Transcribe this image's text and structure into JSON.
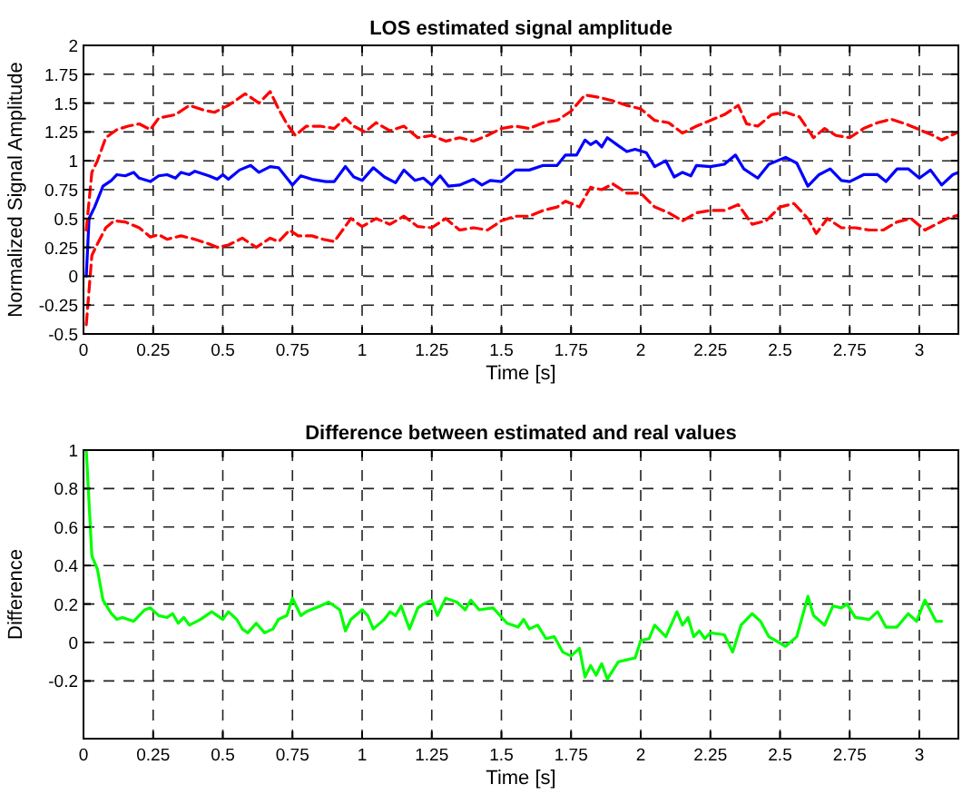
{
  "chart_data": [
    {
      "type": "line",
      "title": "LOS estimated signal amplitude",
      "xlabel": "Time [s]",
      "ylabel": "Normalized Signal Amplitude",
      "xlim": [
        0,
        3.14
      ],
      "ylim": [
        -0.5,
        2
      ],
      "xticks": [
        0,
        0.25,
        0.5,
        0.75,
        1,
        1.25,
        1.5,
        1.75,
        2,
        2.25,
        2.5,
        2.75,
        3
      ],
      "yticks": [
        -0.5,
        -0.25,
        0,
        0.25,
        0.5,
        0.75,
        1,
        1.25,
        1.5,
        1.75,
        2
      ],
      "grid": true,
      "series": [
        {
          "color": "#0000ff",
          "line_style": "solid",
          "x": [
            0.01,
            0.02,
            0.04,
            0.07,
            0.1,
            0.12,
            0.15,
            0.18,
            0.2,
            0.24,
            0.27,
            0.3,
            0.33,
            0.35,
            0.38,
            0.4,
            0.45,
            0.48,
            0.5,
            0.52,
            0.56,
            0.6,
            0.63,
            0.67,
            0.7,
            0.73,
            0.75,
            0.78,
            0.82,
            0.87,
            0.9,
            0.94,
            0.97,
            1.0,
            1.04,
            1.08,
            1.12,
            1.15,
            1.19,
            1.22,
            1.25,
            1.28,
            1.31,
            1.35,
            1.4,
            1.43,
            1.46,
            1.5,
            1.55,
            1.6,
            1.65,
            1.7,
            1.73,
            1.77,
            1.8,
            1.82,
            1.84,
            1.86,
            1.88,
            1.92,
            1.95,
            1.98,
            2.02,
            2.05,
            2.09,
            2.12,
            2.15,
            2.18,
            2.2,
            2.25,
            2.3,
            2.34,
            2.37,
            2.42,
            2.46,
            2.52,
            2.56,
            2.6,
            2.64,
            2.68,
            2.72,
            2.75,
            2.8,
            2.85,
            2.88,
            2.92,
            2.96,
            3.0,
            3.04,
            3.08,
            3.12,
            3.14
          ],
          "values": [
            0,
            0.5,
            0.6,
            0.78,
            0.83,
            0.88,
            0.87,
            0.9,
            0.85,
            0.82,
            0.87,
            0.88,
            0.85,
            0.9,
            0.88,
            0.91,
            0.87,
            0.84,
            0.88,
            0.84,
            0.92,
            0.96,
            0.9,
            0.95,
            0.94,
            0.85,
            0.79,
            0.87,
            0.84,
            0.82,
            0.82,
            0.95,
            0.86,
            0.83,
            0.94,
            0.86,
            0.81,
            0.92,
            0.83,
            0.85,
            0.79,
            0.87,
            0.78,
            0.79,
            0.84,
            0.79,
            0.83,
            0.82,
            0.92,
            0.92,
            0.96,
            0.96,
            1.05,
            1.05,
            1.18,
            1.14,
            1.17,
            1.12,
            1.2,
            1.13,
            1.08,
            1.1,
            1.07,
            0.95,
            1.0,
            0.86,
            0.9,
            0.87,
            0.96,
            0.95,
            0.97,
            1.05,
            0.93,
            0.85,
            0.97,
            1.03,
            0.98,
            0.78,
            0.88,
            0.93,
            0.83,
            0.82,
            0.88,
            0.88,
            0.82,
            0.93,
            0.93,
            0.85,
            0.92,
            0.79,
            0.88,
            0.9
          ]
        },
        {
          "color": "#ff0000",
          "line_style": "dashed",
          "x": [
            0.01,
            0.03,
            0.05,
            0.08,
            0.12,
            0.16,
            0.2,
            0.24,
            0.27,
            0.33,
            0.38,
            0.43,
            0.47,
            0.52,
            0.58,
            0.6,
            0.63,
            0.67,
            0.7,
            0.73,
            0.76,
            0.8,
            0.85,
            0.9,
            0.94,
            0.97,
            1.01,
            1.05,
            1.1,
            1.15,
            1.2,
            1.25,
            1.3,
            1.35,
            1.4,
            1.45,
            1.5,
            1.55,
            1.6,
            1.65,
            1.7,
            1.75,
            1.8,
            1.85,
            1.9,
            1.95,
            2.0,
            2.05,
            2.1,
            2.15,
            2.2,
            2.25,
            2.3,
            2.35,
            2.38,
            2.42,
            2.47,
            2.52,
            2.57,
            2.62,
            2.66,
            2.7,
            2.75,
            2.8,
            2.85,
            2.9,
            2.95,
            3.0,
            3.05,
            3.08,
            3.14
          ],
          "values": [
            0.4,
            0.9,
            1.0,
            1.2,
            1.27,
            1.3,
            1.32,
            1.27,
            1.37,
            1.4,
            1.48,
            1.44,
            1.42,
            1.48,
            1.58,
            1.55,
            1.5,
            1.6,
            1.45,
            1.32,
            1.22,
            1.3,
            1.3,
            1.28,
            1.37,
            1.3,
            1.25,
            1.33,
            1.26,
            1.3,
            1.2,
            1.22,
            1.17,
            1.2,
            1.17,
            1.22,
            1.28,
            1.3,
            1.28,
            1.33,
            1.35,
            1.43,
            1.57,
            1.55,
            1.52,
            1.48,
            1.45,
            1.35,
            1.33,
            1.24,
            1.3,
            1.35,
            1.4,
            1.48,
            1.32,
            1.3,
            1.4,
            1.42,
            1.38,
            1.2,
            1.28,
            1.22,
            1.2,
            1.28,
            1.33,
            1.36,
            1.32,
            1.27,
            1.22,
            1.18,
            1.25
          ]
        },
        {
          "color": "#ff0000",
          "line_style": "dashed",
          "x": [
            0.01,
            0.03,
            0.05,
            0.08,
            0.11,
            0.15,
            0.2,
            0.24,
            0.27,
            0.3,
            0.35,
            0.4,
            0.45,
            0.48,
            0.52,
            0.57,
            0.62,
            0.67,
            0.7,
            0.74,
            0.77,
            0.82,
            0.86,
            0.9,
            0.93,
            0.96,
            1.0,
            1.05,
            1.1,
            1.15,
            1.2,
            1.25,
            1.3,
            1.35,
            1.4,
            1.45,
            1.5,
            1.55,
            1.6,
            1.65,
            1.7,
            1.73,
            1.78,
            1.82,
            1.86,
            1.9,
            1.95,
            2.0,
            2.05,
            2.1,
            2.15,
            2.2,
            2.25,
            2.3,
            2.35,
            2.4,
            2.45,
            2.5,
            2.55,
            2.6,
            2.63,
            2.67,
            2.72,
            2.77,
            2.82,
            2.87,
            2.92,
            2.97,
            3.02,
            3.06,
            3.1,
            3.14
          ],
          "values": [
            -0.42,
            0.18,
            0.28,
            0.42,
            0.48,
            0.47,
            0.42,
            0.34,
            0.36,
            0.32,
            0.35,
            0.32,
            0.28,
            0.25,
            0.27,
            0.33,
            0.25,
            0.33,
            0.3,
            0.4,
            0.35,
            0.35,
            0.32,
            0.3,
            0.4,
            0.5,
            0.43,
            0.5,
            0.45,
            0.52,
            0.43,
            0.42,
            0.5,
            0.4,
            0.42,
            0.4,
            0.48,
            0.52,
            0.52,
            0.57,
            0.6,
            0.65,
            0.6,
            0.77,
            0.75,
            0.8,
            0.72,
            0.72,
            0.6,
            0.55,
            0.48,
            0.55,
            0.57,
            0.57,
            0.62,
            0.45,
            0.48,
            0.6,
            0.63,
            0.5,
            0.37,
            0.5,
            0.42,
            0.42,
            0.4,
            0.4,
            0.47,
            0.5,
            0.4,
            0.45,
            0.5,
            0.53
          ]
        }
      ]
    },
    {
      "type": "line",
      "title": "Difference between estimated and real values",
      "xlabel": "Time [s]",
      "ylabel": "Difference",
      "xlim": [
        0,
        3.14
      ],
      "ylim": [
        -0.5,
        1
      ],
      "xticks": [
        0,
        0.25,
        0.5,
        0.75,
        1,
        1.25,
        1.5,
        1.75,
        2,
        2.25,
        2.5,
        2.75,
        3
      ],
      "yticks": [
        -0.2,
        0,
        0.2,
        0.4,
        0.6,
        0.8,
        1
      ],
      "grid": true,
      "series": [
        {
          "color": "#00ff00",
          "line_style": "solid",
          "x": [
            0.01,
            0.03,
            0.05,
            0.07,
            0.1,
            0.12,
            0.14,
            0.18,
            0.22,
            0.24,
            0.27,
            0.3,
            0.32,
            0.34,
            0.36,
            0.38,
            0.42,
            0.46,
            0.5,
            0.52,
            0.55,
            0.57,
            0.59,
            0.62,
            0.65,
            0.68,
            0.7,
            0.73,
            0.75,
            0.78,
            0.8,
            0.85,
            0.88,
            0.92,
            0.94,
            0.96,
            1.0,
            1.02,
            1.04,
            1.08,
            1.1,
            1.12,
            1.14,
            1.17,
            1.2,
            1.22,
            1.25,
            1.27,
            1.3,
            1.34,
            1.37,
            1.39,
            1.42,
            1.47,
            1.52,
            1.56,
            1.58,
            1.6,
            1.63,
            1.66,
            1.69,
            1.72,
            1.75,
            1.78,
            1.8,
            1.82,
            1.84,
            1.86,
            1.88,
            1.92,
            1.95,
            1.98,
            2.0,
            2.03,
            2.05,
            2.09,
            2.13,
            2.15,
            2.17,
            2.19,
            2.21,
            2.23,
            2.25,
            2.3,
            2.33,
            2.36,
            2.4,
            2.43,
            2.46,
            2.52,
            2.56,
            2.6,
            2.62,
            2.66,
            2.69,
            2.72,
            2.74,
            2.77,
            2.82,
            2.85,
            2.88,
            2.92,
            2.96,
            2.99,
            3.02,
            3.06,
            3.08
          ],
          "values": [
            1.0,
            0.45,
            0.38,
            0.22,
            0.15,
            0.12,
            0.13,
            0.11,
            0.17,
            0.18,
            0.14,
            0.13,
            0.15,
            0.1,
            0.13,
            0.09,
            0.12,
            0.16,
            0.12,
            0.16,
            0.12,
            0.07,
            0.05,
            0.1,
            0.05,
            0.07,
            0.12,
            0.14,
            0.23,
            0.14,
            0.16,
            0.19,
            0.21,
            0.17,
            0.06,
            0.12,
            0.17,
            0.14,
            0.07,
            0.12,
            0.16,
            0.14,
            0.19,
            0.07,
            0.18,
            0.2,
            0.22,
            0.14,
            0.23,
            0.21,
            0.17,
            0.22,
            0.17,
            0.18,
            0.1,
            0.08,
            0.12,
            0.07,
            0.09,
            0.02,
            0.03,
            -0.05,
            -0.07,
            -0.03,
            -0.18,
            -0.12,
            -0.17,
            -0.11,
            -0.19,
            -0.1,
            -0.09,
            -0.08,
            0.01,
            0.02,
            0.09,
            0.03,
            0.16,
            0.09,
            0.13,
            0.03,
            0.06,
            0.02,
            0.05,
            0.04,
            -0.05,
            0.09,
            0.15,
            0.11,
            0.03,
            -0.02,
            0.03,
            0.24,
            0.14,
            0.09,
            0.19,
            0.18,
            0.2,
            0.13,
            0.12,
            0.16,
            0.08,
            0.08,
            0.15,
            0.11,
            0.22,
            0.11,
            0.11
          ]
        }
      ]
    }
  ]
}
